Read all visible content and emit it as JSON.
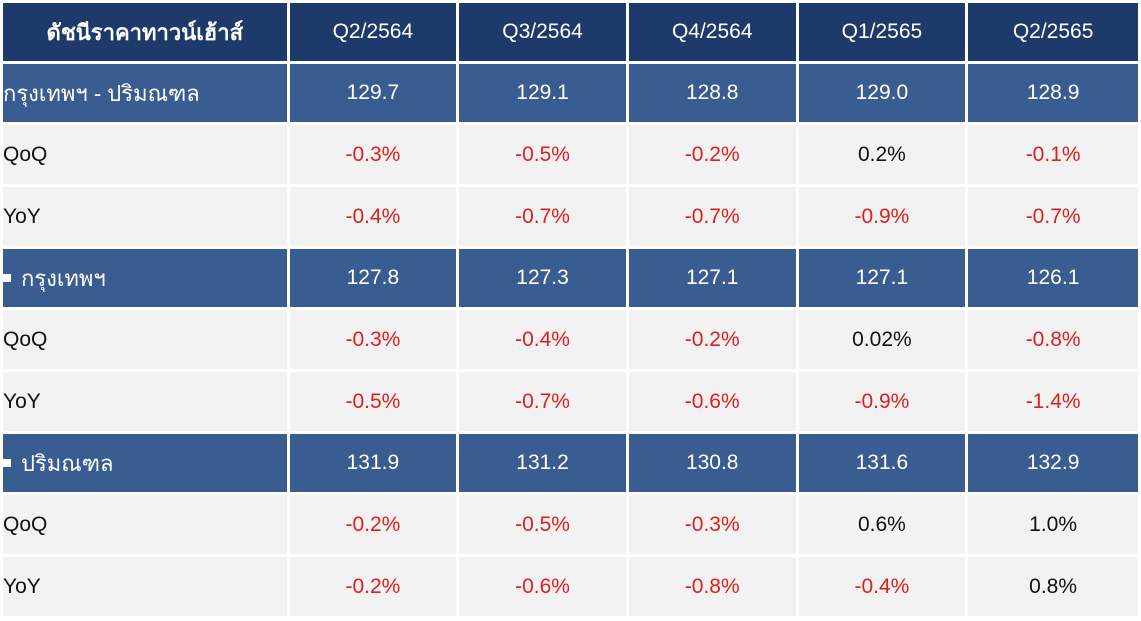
{
  "chart_data": {
    "type": "table",
    "columns": [
      "ดัชนีราคาทาวน์เฮ้าส์",
      "Q2/2564",
      "Q3/2564",
      "Q4/2564",
      "Q1/2565",
      "Q2/2565"
    ],
    "groups": [
      {
        "label": "กรุงเทพฯ - ปริมณฑล",
        "bullet": false,
        "values": [
          "129.7",
          "129.1",
          "128.8",
          "129.0",
          "128.9"
        ],
        "metrics": [
          {
            "label": "QoQ",
            "values": [
              "-0.3%",
              "-0.5%",
              "-0.2%",
              "0.2%",
              "-0.1%"
            ]
          },
          {
            "label": "YoY",
            "values": [
              "-0.4%",
              "-0.7%",
              "-0.7%",
              "-0.9%",
              "-0.7%"
            ]
          }
        ]
      },
      {
        "label": "กรุงเทพฯ",
        "bullet": true,
        "values": [
          "127.8",
          "127.3",
          "127.1",
          "127.1",
          "126.1"
        ],
        "metrics": [
          {
            "label": "QoQ",
            "values": [
              "-0.3%",
              "-0.4%",
              "-0.2%",
              "0.02%",
              "-0.8%"
            ]
          },
          {
            "label": "YoY",
            "values": [
              "-0.5%",
              "-0.7%",
              "-0.6%",
              "-0.9%",
              "-1.4%"
            ]
          }
        ]
      },
      {
        "label": "ปริมณฑล",
        "bullet": true,
        "values": [
          "131.9",
          "131.2",
          "130.8",
          "131.6",
          "132.9"
        ],
        "metrics": [
          {
            "label": "QoQ",
            "values": [
              "-0.2%",
              "-0.5%",
              "-0.3%",
              "0.6%",
              "1.0%"
            ]
          },
          {
            "label": "YoY",
            "values": [
              "-0.2%",
              "-0.6%",
              "-0.8%",
              "-0.4%",
              "0.8%"
            ]
          }
        ]
      }
    ]
  },
  "colors": {
    "header_bg": "#1e3a6b",
    "group_bg": "#3a5d91",
    "metric_bg": "#f2f2f2",
    "negative": "#e01e1e",
    "positive": "#111111"
  }
}
